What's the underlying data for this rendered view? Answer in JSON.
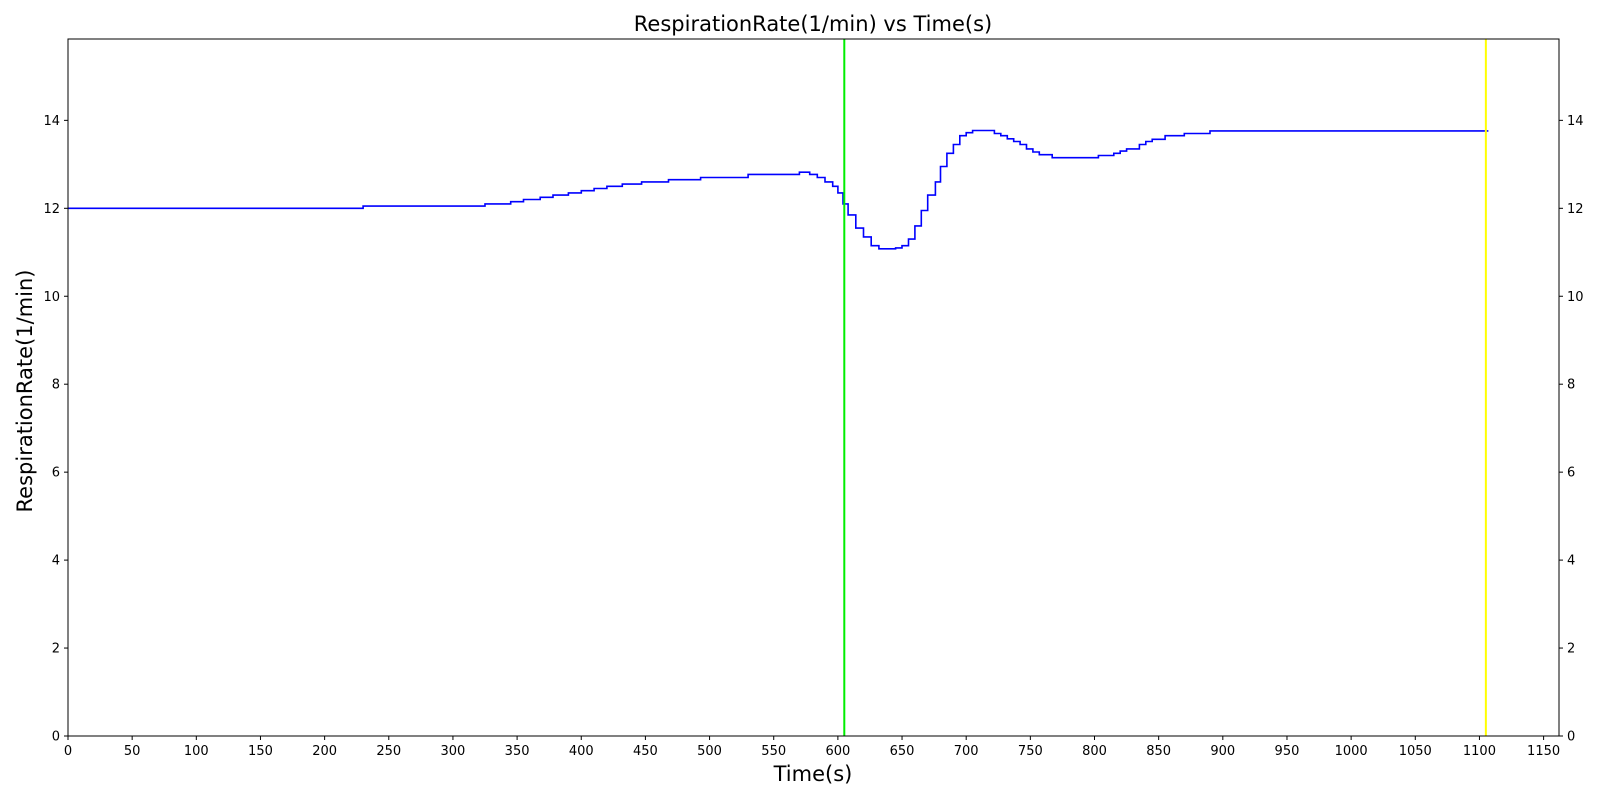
{
  "chart_data": {
    "type": "line",
    "title": "RespirationRate(1/min) vs Time(s)",
    "xlabel": "Time(s)",
    "ylabel": "RespirationRate(1/min)",
    "xlim": [
      0,
      1162
    ],
    "ylim": [
      0,
      15.85
    ],
    "x_ticks": [
      0,
      50,
      100,
      150,
      200,
      250,
      300,
      350,
      400,
      450,
      500,
      550,
      600,
      650,
      700,
      750,
      800,
      850,
      900,
      950,
      1000,
      1050,
      1100,
      1150
    ],
    "y_ticks": [
      0,
      2,
      4,
      6,
      8,
      10,
      12,
      14
    ],
    "y_ticks_right": true,
    "grid": false,
    "line_color": "#0000ff",
    "series": [
      {
        "step": true,
        "x": [
          0,
          230,
          325,
          345,
          355,
          368,
          378,
          390,
          400,
          410,
          420,
          432,
          447,
          468,
          493,
          530,
          570,
          578,
          584,
          590,
          596,
          600,
          604,
          608,
          614,
          620,
          626,
          632,
          645,
          650,
          655,
          660,
          665,
          670,
          676,
          680,
          685,
          690,
          695,
          700,
          705,
          722,
          727,
          732,
          737,
          742,
          747,
          752,
          757,
          767,
          803,
          815,
          820,
          825,
          835,
          840,
          845,
          855,
          870,
          890,
          1107
        ],
        "y": [
          12.0,
          12.05,
          12.1,
          12.15,
          12.2,
          12.25,
          12.3,
          12.35,
          12.4,
          12.45,
          12.5,
          12.55,
          12.6,
          12.65,
          12.7,
          12.77,
          12.82,
          12.77,
          12.7,
          12.6,
          12.5,
          12.35,
          12.1,
          11.85,
          11.55,
          11.35,
          11.15,
          11.08,
          11.1,
          11.15,
          11.3,
          11.6,
          11.95,
          12.3,
          12.6,
          12.95,
          13.25,
          13.45,
          13.65,
          13.72,
          13.77,
          13.7,
          13.65,
          13.58,
          13.52,
          13.45,
          13.35,
          13.28,
          13.22,
          13.15,
          13.2,
          13.25,
          13.3,
          13.35,
          13.45,
          13.52,
          13.57,
          13.65,
          13.7,
          13.76,
          13.76
        ]
      }
    ],
    "vlines": [
      {
        "x": 605,
        "color": "#00ee00"
      },
      {
        "x": 1105,
        "color": "#ffff00"
      }
    ]
  }
}
